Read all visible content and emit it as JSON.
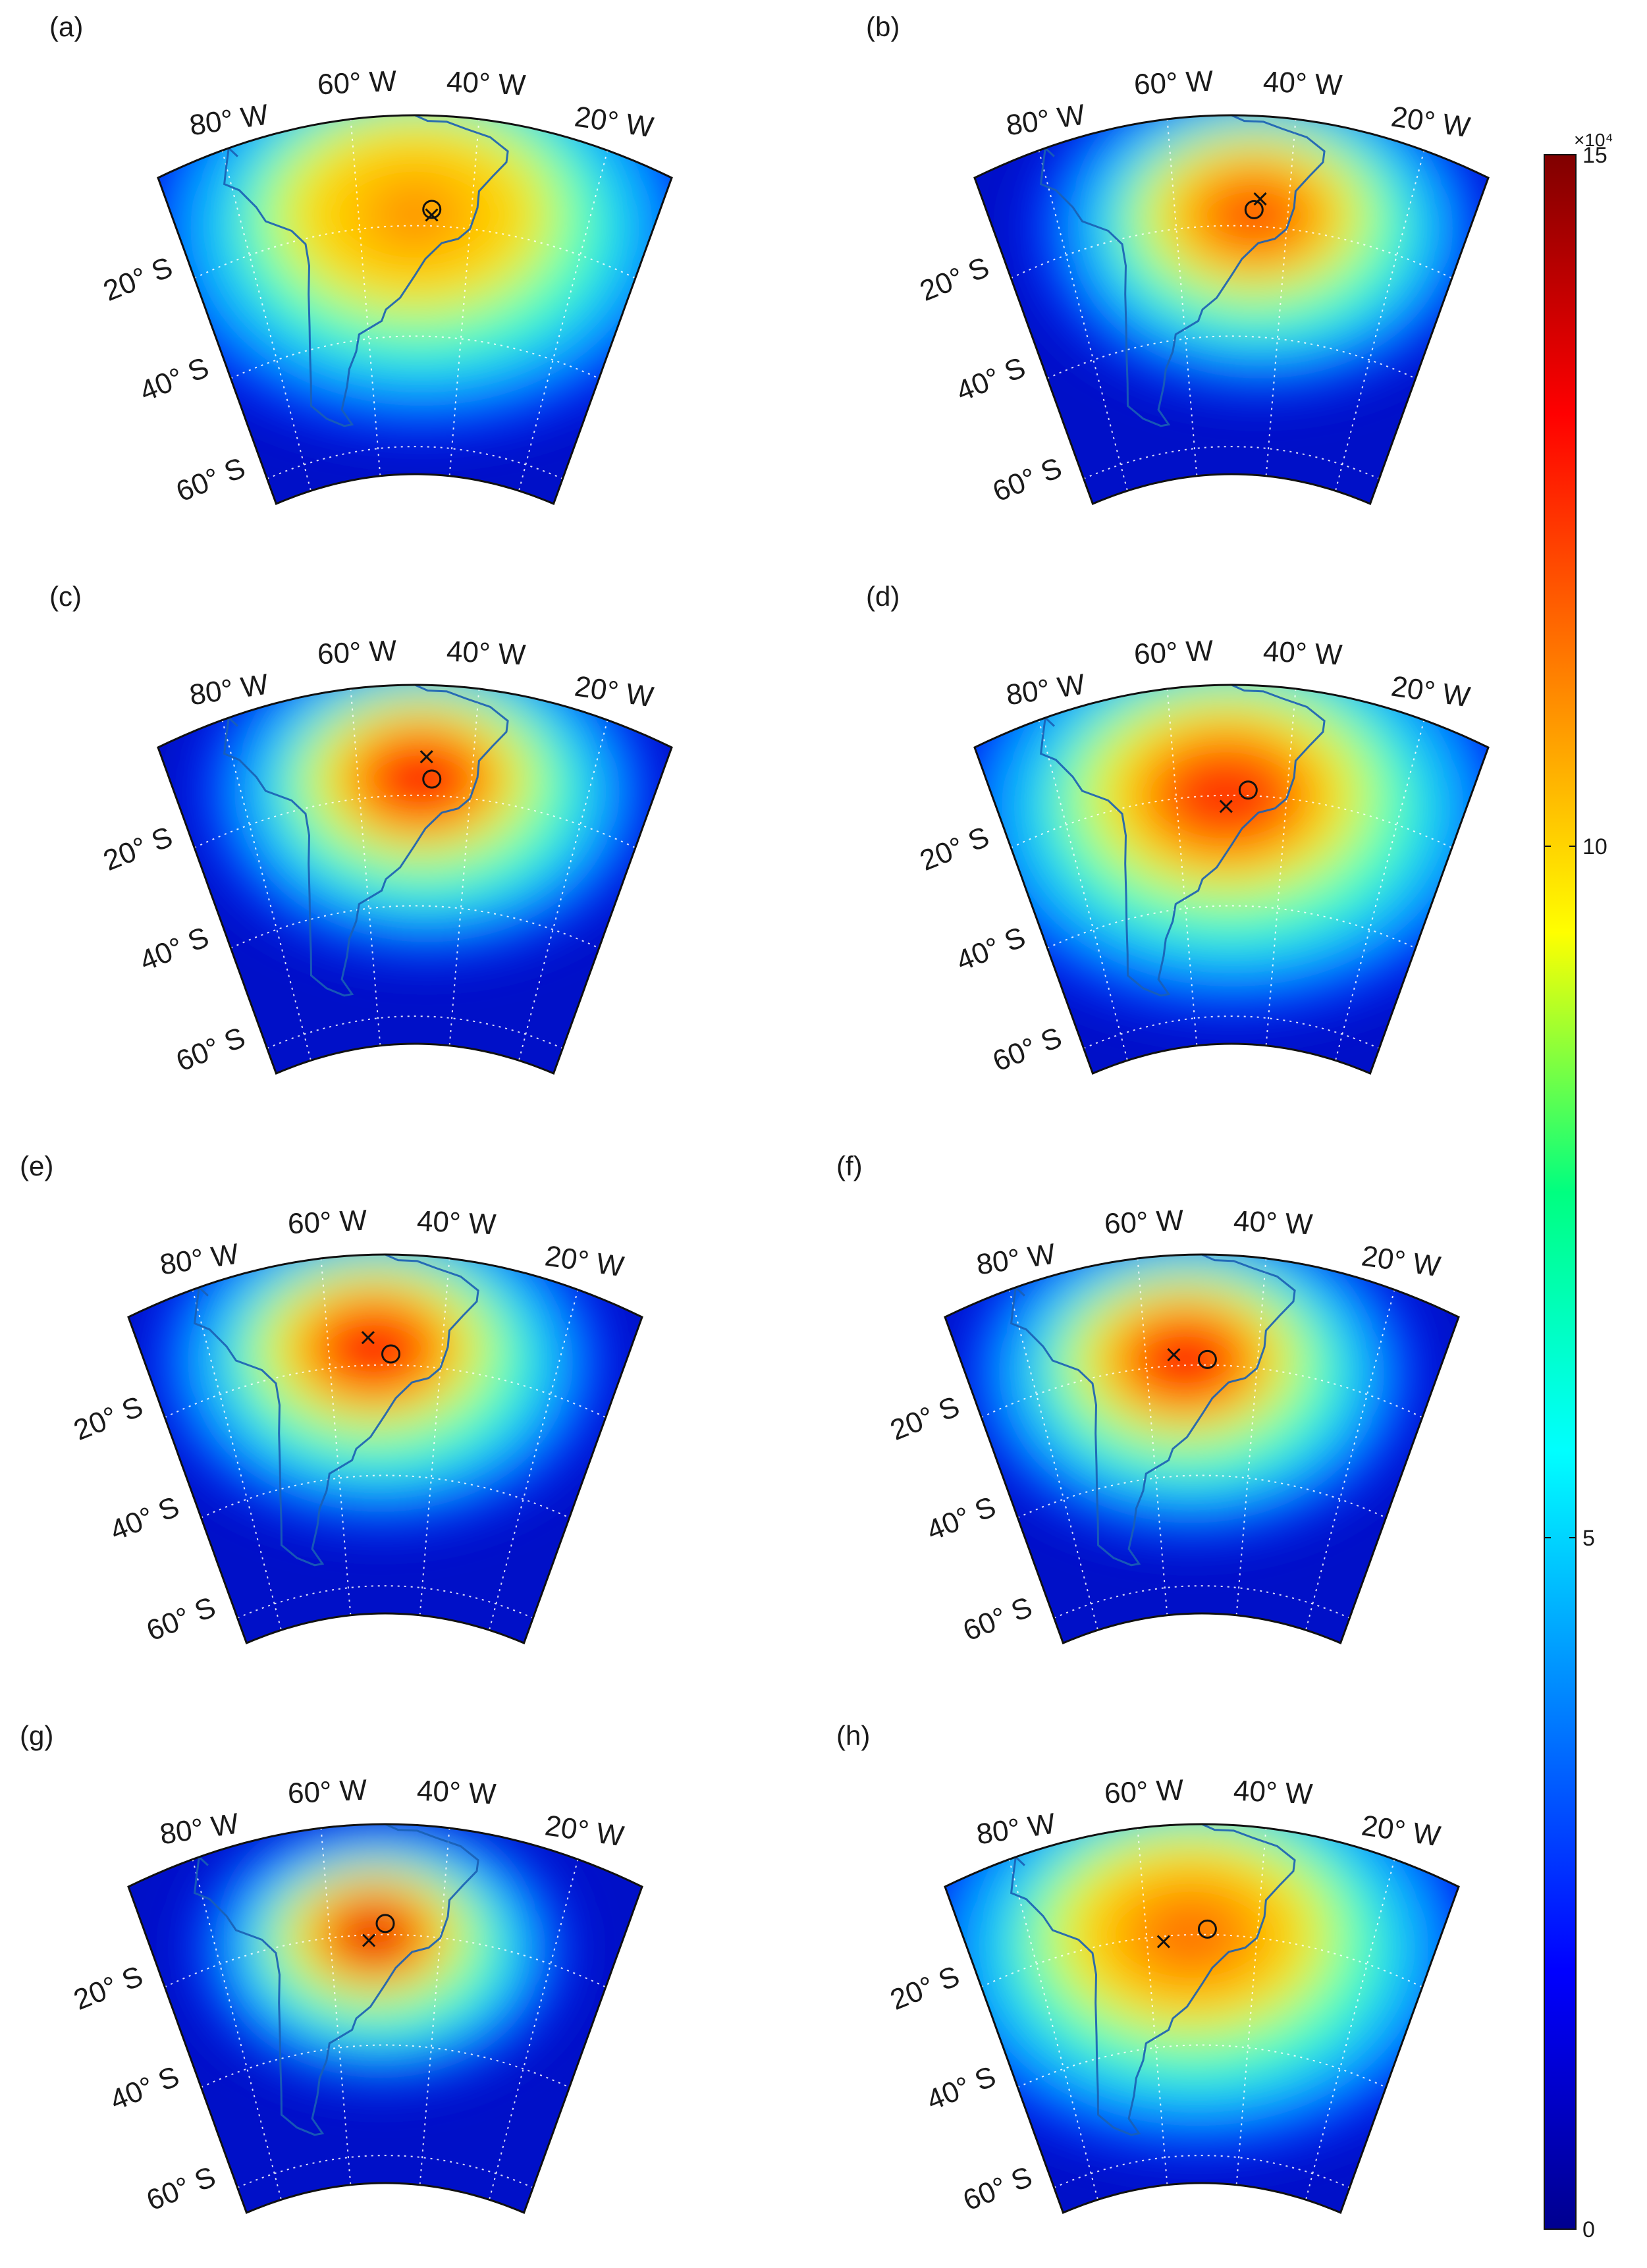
{
  "figure": {
    "colorbar": {
      "multiplier": "×10⁴",
      "ticks": [
        {
          "value": 0,
          "label": "0"
        },
        {
          "value": 5,
          "label": "5"
        },
        {
          "value": 10,
          "label": "10"
        },
        {
          "value": 15,
          "label": "15"
        }
      ],
      "range": [
        0,
        15
      ],
      "colormap": "jet"
    },
    "lon_labels": [
      "80° W",
      "60° W",
      "40° W",
      "20° W"
    ],
    "lat_labels": [
      "20° S",
      "40° S",
      "60° S"
    ]
  },
  "chart_data": [
    {
      "type": "heatmap",
      "panel": "(a)",
      "map_extent": {
        "lon": [
          -90,
          -10
        ],
        "lat": [
          -65,
          0
        ]
      },
      "hotspot": {
        "lon": -50,
        "lat": -18,
        "peak": 11,
        "spread": "broad"
      },
      "markers": [
        {
          "symbol": "x",
          "lon": -47,
          "lat": -18
        },
        {
          "symbol": "o",
          "lon": -47,
          "lat": -17
        }
      ]
    },
    {
      "type": "heatmap",
      "panel": "(b)",
      "map_extent": {
        "lon": [
          -90,
          -10
        ],
        "lat": [
          -65,
          0
        ]
      },
      "hotspot": {
        "lon": -46,
        "lat": -18,
        "peak": 12,
        "spread": "medium"
      },
      "markers": [
        {
          "symbol": "x",
          "lon": -45,
          "lat": -15
        },
        {
          "symbol": "o",
          "lon": -46,
          "lat": -17
        }
      ]
    },
    {
      "type": "heatmap",
      "panel": "(c)",
      "map_extent": {
        "lon": [
          -90,
          -10
        ],
        "lat": [
          -65,
          0
        ]
      },
      "hotspot": {
        "lon": -49,
        "lat": -17,
        "peak": 13,
        "spread": "medium"
      },
      "markers": [
        {
          "symbol": "x",
          "lon": -48,
          "lat": -13
        },
        {
          "symbol": "o",
          "lon": -47,
          "lat": -17
        }
      ]
    },
    {
      "type": "heatmap",
      "panel": "(d)",
      "map_extent": {
        "lon": [
          -90,
          -10
        ],
        "lat": [
          -65,
          0
        ]
      },
      "hotspot": {
        "lon": -51,
        "lat": -20,
        "peak": 12.5,
        "spread": "broad"
      },
      "markers": [
        {
          "symbol": "x",
          "lon": -51,
          "lat": -22
        },
        {
          "symbol": "o",
          "lon": -47,
          "lat": -19
        }
      ]
    },
    {
      "type": "heatmap",
      "panel": "(e)",
      "map_extent": {
        "lon": [
          -90,
          -10
        ],
        "lat": [
          -65,
          0
        ]
      },
      "hotspot": {
        "lon": -52,
        "lat": -17,
        "peak": 13,
        "spread": "medium"
      },
      "markers": [
        {
          "symbol": "x",
          "lon": -53,
          "lat": -15
        },
        {
          "symbol": "o",
          "lon": -49,
          "lat": -18
        }
      ]
    },
    {
      "type": "heatmap",
      "panel": "(f)",
      "map_extent": {
        "lon": [
          -90,
          -10
        ],
        "lat": [
          -65,
          0
        ]
      },
      "hotspot": {
        "lon": -53,
        "lat": -19,
        "peak": 13,
        "spread": "medium"
      },
      "markers": [
        {
          "symbol": "x",
          "lon": -55,
          "lat": -18
        },
        {
          "symbol": "o",
          "lon": -49,
          "lat": -19
        }
      ]
    },
    {
      "type": "heatmap",
      "panel": "(g)",
      "map_extent": {
        "lon": [
          -90,
          -10
        ],
        "lat": [
          -65,
          0
        ]
      },
      "hotspot": {
        "lon": -52,
        "lat": -20,
        "peak": 13.5,
        "spread": "narrow"
      },
      "markers": [
        {
          "symbol": "x",
          "lon": -53,
          "lat": -21
        },
        {
          "symbol": "o",
          "lon": -50,
          "lat": -18
        }
      ]
    },
    {
      "type": "heatmap",
      "panel": "(h)",
      "map_extent": {
        "lon": [
          -90,
          -10
        ],
        "lat": [
          -65,
          0
        ]
      },
      "hotspot": {
        "lon": -52,
        "lat": -20,
        "peak": 11.5,
        "spread": "broad"
      },
      "markers": [
        {
          "symbol": "x",
          "lon": -57,
          "lat": -21
        },
        {
          "symbol": "o",
          "lon": -49,
          "lat": -19
        }
      ]
    }
  ]
}
